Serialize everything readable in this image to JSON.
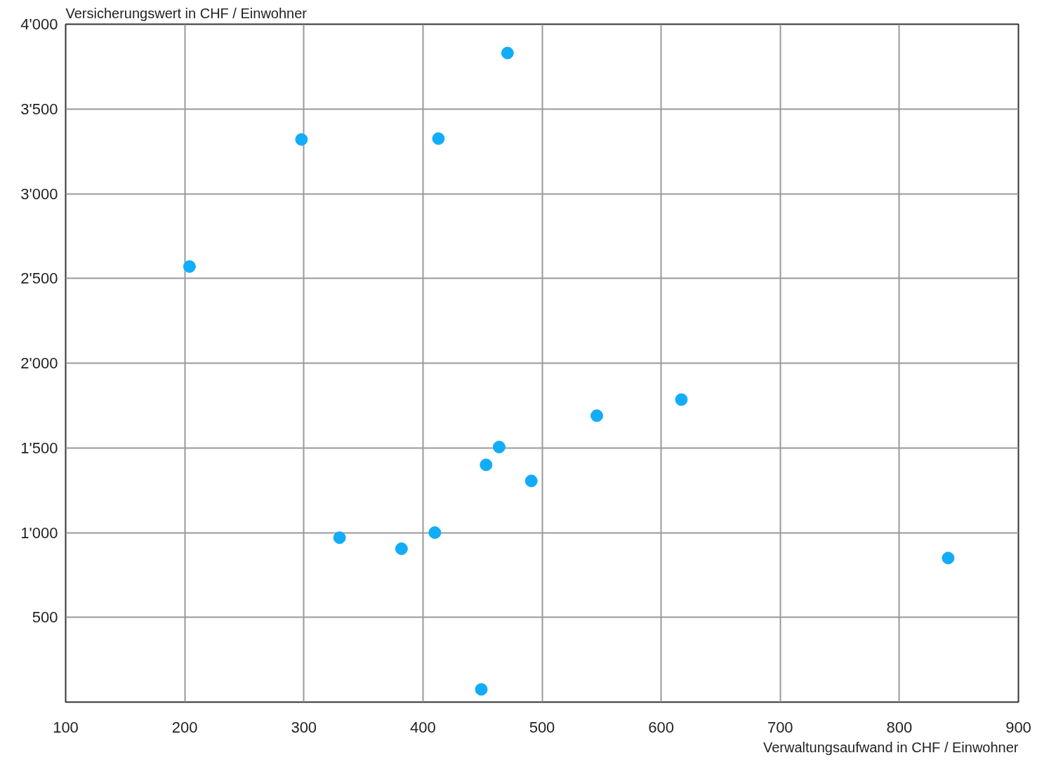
{
  "chart_data": {
    "type": "scatter",
    "xlabel": "Verwaltungsaufwand in CHF / Einwohner",
    "ylabel": "Versicherungswert in CHF / Einwohner",
    "x": [
      204,
      298,
      413,
      471,
      617,
      546,
      464,
      453,
      491,
      330,
      382,
      410,
      841,
      449
    ],
    "values": [
      2570,
      3320,
      3325,
      3830,
      1785,
      1690,
      1505,
      1400,
      1305,
      970,
      905,
      1000,
      850,
      75
    ],
    "color": "#12acf8",
    "marker": "circle",
    "xlim": [
      100,
      900
    ],
    "ylim": [
      0,
      4000
    ],
    "xticks": [
      100,
      200,
      300,
      400,
      500,
      600,
      700,
      800,
      900
    ],
    "yticks": [
      {
        "value": 500,
        "label": "500"
      },
      {
        "value": 1000,
        "label": "1'000"
      },
      {
        "value": 1500,
        "label": "1'500"
      },
      {
        "value": 2000,
        "label": "2'000"
      },
      {
        "value": 2500,
        "label": "2'500"
      },
      {
        "value": 3000,
        "label": "3'000"
      },
      {
        "value": 3500,
        "label": "3'500"
      },
      {
        "value": 4000,
        "label": "4'000"
      }
    ],
    "grid": true
  }
}
